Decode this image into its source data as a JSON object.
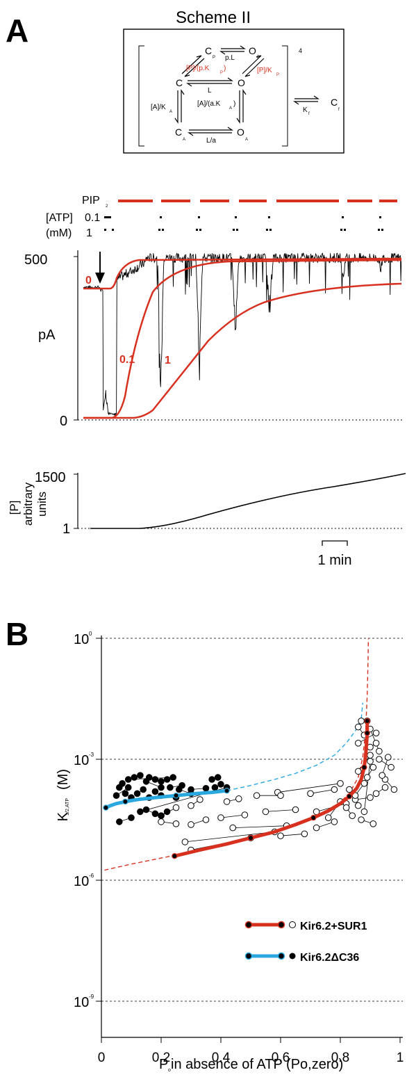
{
  "panel_a": {
    "label": "A",
    "scheme": {
      "title": "Scheme II",
      "superscript": "4",
      "states": {
        "cp": "C",
        "cp_sub": "P",
        "op": "O",
        "op_sub": "P",
        "c": "C",
        "o": "O",
        "ca": "C",
        "ca_sub": "A",
        "oa": "O",
        "oa_sub": "A",
        "cf": "C",
        "cf_sub": "f"
      },
      "rates": {
        "cp_op": "p.L",
        "c_cp": "[P]/(p.K",
        "c_cp_sub": "P",
        "c_cp_end": ")",
        "o_op": "[P]/K",
        "o_op_sub": "P",
        "c_o": "L",
        "c_ca": "[A]/K",
        "c_ca_sub": "A",
        "o_oa": "[A]/(a.K",
        "o_oa_sub": "A",
        "o_oa_end": ")",
        "ca_oa": "L/a",
        "bracket_cf": "K",
        "bracket_cf_sub": "f"
      }
    },
    "trace": {
      "pip_label": "PIP",
      "pip_sub": "2",
      "atp_label": "[ATP]",
      "mm_label": "(mM)",
      "atp_01": "0.1",
      "atp_1": "1",
      "y_top": "500",
      "y_unit": "pA",
      "y_zero": "0",
      "curve_labels": [
        "0",
        "0.1",
        "1"
      ]
    },
    "p_trace": {
      "y_top": "1500",
      "y_bottom": "1",
      "ylabel_1": "[P]",
      "ylabel_2": "arbitrary",
      "ylabel_3": "units",
      "scale_bar": "1 min"
    }
  },
  "panel_b": {
    "label": "B",
    "legend": [
      {
        "name": "Kir6.2+SUR1",
        "line_color": "#d7301f",
        "marker": "open"
      },
      {
        "name": "Kir6.2ΔC36",
        "line_color": "#29a8e0",
        "marker": "filled"
      }
    ]
  },
  "chart_data": {
    "type": "scatter",
    "xlabel": "P",
    "xlabel_sub": "o",
    "xlabel_rest": " in absence of ATP (Po,zero)",
    "ylabel": "K",
    "ylabel_sub": "1/2,ATP",
    "ylabel_unit": "(M)",
    "xlim": [
      0,
      1
    ],
    "ylim_log10": [
      -9,
      0
    ],
    "y_scale": "log",
    "x_ticks": [
      "0",
      "0.2",
      "0.4",
      "0.6",
      "0.8",
      "1"
    ],
    "y_ticks": [
      {
        "base": "10",
        "exp": "0"
      },
      {
        "base": "10",
        "exp": "-3"
      },
      {
        "base": "10",
        "exp": "-6"
      },
      {
        "base": "10",
        "exp": "-9"
      }
    ],
    "grid": "dashed at each y tick",
    "series": [
      {
        "name": "Kir6.2+SUR1",
        "marker": "open",
        "points": [
          [
            0.59,
            -3.82
          ],
          [
            0.8,
            -3.6
          ],
          [
            0.78,
            -3.75
          ],
          [
            0.7,
            -3.85
          ],
          [
            0.6,
            -3.9
          ],
          [
            0.52,
            -3.9
          ],
          [
            0.46,
            -3.98
          ],
          [
            0.42,
            -4.05
          ],
          [
            0.33,
            -4.0
          ],
          [
            0.3,
            -4.15
          ],
          [
            0.25,
            -4.2
          ],
          [
            0.2,
            -4.4
          ],
          [
            0.2,
            -4.55
          ],
          [
            0.25,
            -4.6
          ],
          [
            0.3,
            -4.62
          ],
          [
            0.35,
            -4.5
          ],
          [
            0.4,
            -4.45
          ],
          [
            0.48,
            -4.38
          ],
          [
            0.55,
            -4.3
          ],
          [
            0.65,
            -4.25
          ],
          [
            0.72,
            -4.3
          ],
          [
            0.82,
            -4.1
          ],
          [
            0.85,
            -4.0
          ],
          [
            0.9,
            -3.95
          ],
          [
            0.92,
            -3.85
          ],
          [
            0.95,
            -3.7
          ],
          [
            0.98,
            -3.75
          ],
          [
            0.95,
            -3.5
          ],
          [
            0.97,
            -3.2
          ],
          [
            0.93,
            -3.0
          ],
          [
            0.9,
            -2.7
          ],
          [
            0.92,
            -2.6
          ],
          [
            0.88,
            -2.4
          ],
          [
            0.86,
            -2.2
          ],
          [
            0.87,
            -2.05
          ],
          [
            0.89,
            -2.05
          ],
          [
            0.9,
            -2.9
          ],
          [
            0.86,
            -3.3
          ],
          [
            0.88,
            -3.6
          ],
          [
            0.85,
            -3.9
          ],
          [
            0.82,
            -4.2
          ],
          [
            0.84,
            -4.4
          ],
          [
            0.87,
            -4.5
          ],
          [
            0.91,
            -4.6
          ],
          [
            0.78,
            -4.55
          ],
          [
            0.72,
            -4.7
          ],
          [
            0.68,
            -4.85
          ],
          [
            0.6,
            -4.9
          ],
          [
            0.5,
            -4.95
          ],
          [
            0.3,
            -5.25
          ],
          [
            0.28,
            -5.05
          ],
          [
            0.58,
            -4.8
          ],
          [
            0.62,
            -4.65
          ],
          [
            0.44,
            -4.7
          ],
          [
            0.76,
            -4.45
          ],
          [
            0.8,
            -4.05
          ],
          [
            0.94,
            -3.4
          ],
          [
            0.96,
            -2.95
          ],
          [
            0.91,
            -3.2
          ],
          [
            0.89,
            -3.45
          ],
          [
            0.83,
            -3.75
          ],
          [
            0.86,
            -4.15
          ],
          [
            0.88,
            -4.3
          ],
          [
            0.9,
            -3.05
          ],
          [
            0.92,
            -2.35
          ],
          [
            0.86,
            -2.6
          ],
          [
            0.93,
            -2.8
          ],
          [
            0.9,
            -2.25
          ]
        ],
        "fit_points": [
          [
            0.245,
            -5.4
          ],
          [
            0.33,
            -5.25
          ],
          [
            0.42,
            -5.1
          ],
          [
            0.5,
            -4.95
          ],
          [
            0.58,
            -4.8
          ],
          [
            0.65,
            -4.62
          ],
          [
            0.71,
            -4.45
          ],
          [
            0.76,
            -4.28
          ],
          [
            0.8,
            -4.1
          ],
          [
            0.83,
            -3.92
          ],
          [
            0.855,
            -3.72
          ],
          [
            0.87,
            -3.5
          ],
          [
            0.88,
            -3.2
          ],
          [
            0.885,
            -2.9
          ],
          [
            0.888,
            -2.6
          ],
          [
            0.89,
            -2.35
          ],
          [
            0.89,
            -2.05
          ]
        ]
      },
      {
        "name": "Kir6.2ΔC36",
        "marker": "filled",
        "points": [
          [
            0.11,
            -3.45
          ],
          [
            0.13,
            -3.4
          ],
          [
            0.16,
            -3.45
          ],
          [
            0.18,
            -3.5
          ],
          [
            0.2,
            -3.55
          ],
          [
            0.22,
            -3.5
          ],
          [
            0.24,
            -3.45
          ],
          [
            0.09,
            -3.5
          ],
          [
            0.07,
            -3.6
          ],
          [
            0.06,
            -3.7
          ],
          [
            0.08,
            -3.85
          ],
          [
            0.1,
            -3.95
          ],
          [
            0.12,
            -3.85
          ],
          [
            0.14,
            -3.75
          ],
          [
            0.18,
            -3.8
          ],
          [
            0.2,
            -3.9
          ],
          [
            0.23,
            -3.7
          ],
          [
            0.27,
            -3.65
          ],
          [
            0.3,
            -3.75
          ],
          [
            0.35,
            -3.72
          ],
          [
            0.38,
            -3.7
          ],
          [
            0.4,
            -3.62
          ],
          [
            0.37,
            -3.5
          ],
          [
            0.39,
            -3.45
          ],
          [
            0.42,
            -3.7
          ],
          [
            0.13,
            -4.3
          ],
          [
            0.15,
            -4.25
          ],
          [
            0.18,
            -4.35
          ],
          [
            0.2,
            -4.4
          ],
          [
            0.22,
            -4.3
          ],
          [
            0.06,
            -4.55
          ],
          [
            0.1,
            -4.45
          ],
          [
            0.26,
            -3.75
          ],
          [
            0.3,
            -3.85
          ],
          [
            0.05,
            -3.9
          ],
          [
            0.09,
            -3.7
          ],
          [
            0.15,
            -3.55
          ],
          [
            0.2,
            -3.7
          ],
          [
            0.25,
            -3.95
          ],
          [
            0.16,
            -3.95
          ]
        ],
        "fit_points": [
          [
            0.015,
            -4.2
          ],
          [
            0.03,
            -4.15
          ],
          [
            0.05,
            -4.1
          ],
          [
            0.08,
            -4.05
          ],
          [
            0.12,
            -4.0
          ],
          [
            0.18,
            -3.95
          ],
          [
            0.25,
            -3.9
          ],
          [
            0.32,
            -3.85
          ],
          [
            0.37,
            -3.82
          ],
          [
            0.42,
            -3.78
          ]
        ]
      }
    ],
    "model_curves": [
      {
        "color": "#d7301f",
        "style": "dashed",
        "points": [
          [
            0.01,
            -5.75
          ],
          [
            0.1,
            -5.6
          ],
          [
            0.2,
            -5.45
          ],
          [
            0.3,
            -5.3
          ],
          [
            0.4,
            -5.12
          ],
          [
            0.5,
            -4.95
          ],
          [
            0.6,
            -4.75
          ],
          [
            0.7,
            -4.5
          ],
          [
            0.78,
            -4.2
          ],
          [
            0.83,
            -3.85
          ],
          [
            0.86,
            -3.45
          ],
          [
            0.875,
            -2.95
          ],
          [
            0.885,
            -2.3
          ],
          [
            0.89,
            -1.4
          ],
          [
            0.893,
            -0.5
          ],
          [
            0.894,
            0.0
          ]
        ]
      },
      {
        "color": "#29a8e0",
        "style": "dashed",
        "points": [
          [
            0.42,
            -3.78
          ],
          [
            0.5,
            -3.65
          ],
          [
            0.58,
            -3.5
          ],
          [
            0.65,
            -3.35
          ],
          [
            0.72,
            -3.15
          ],
          [
            0.78,
            -2.9
          ],
          [
            0.82,
            -2.6
          ],
          [
            0.85,
            -2.3
          ],
          [
            0.87,
            -2.0
          ],
          [
            0.875,
            -1.6
          ]
        ]
      }
    ]
  }
}
